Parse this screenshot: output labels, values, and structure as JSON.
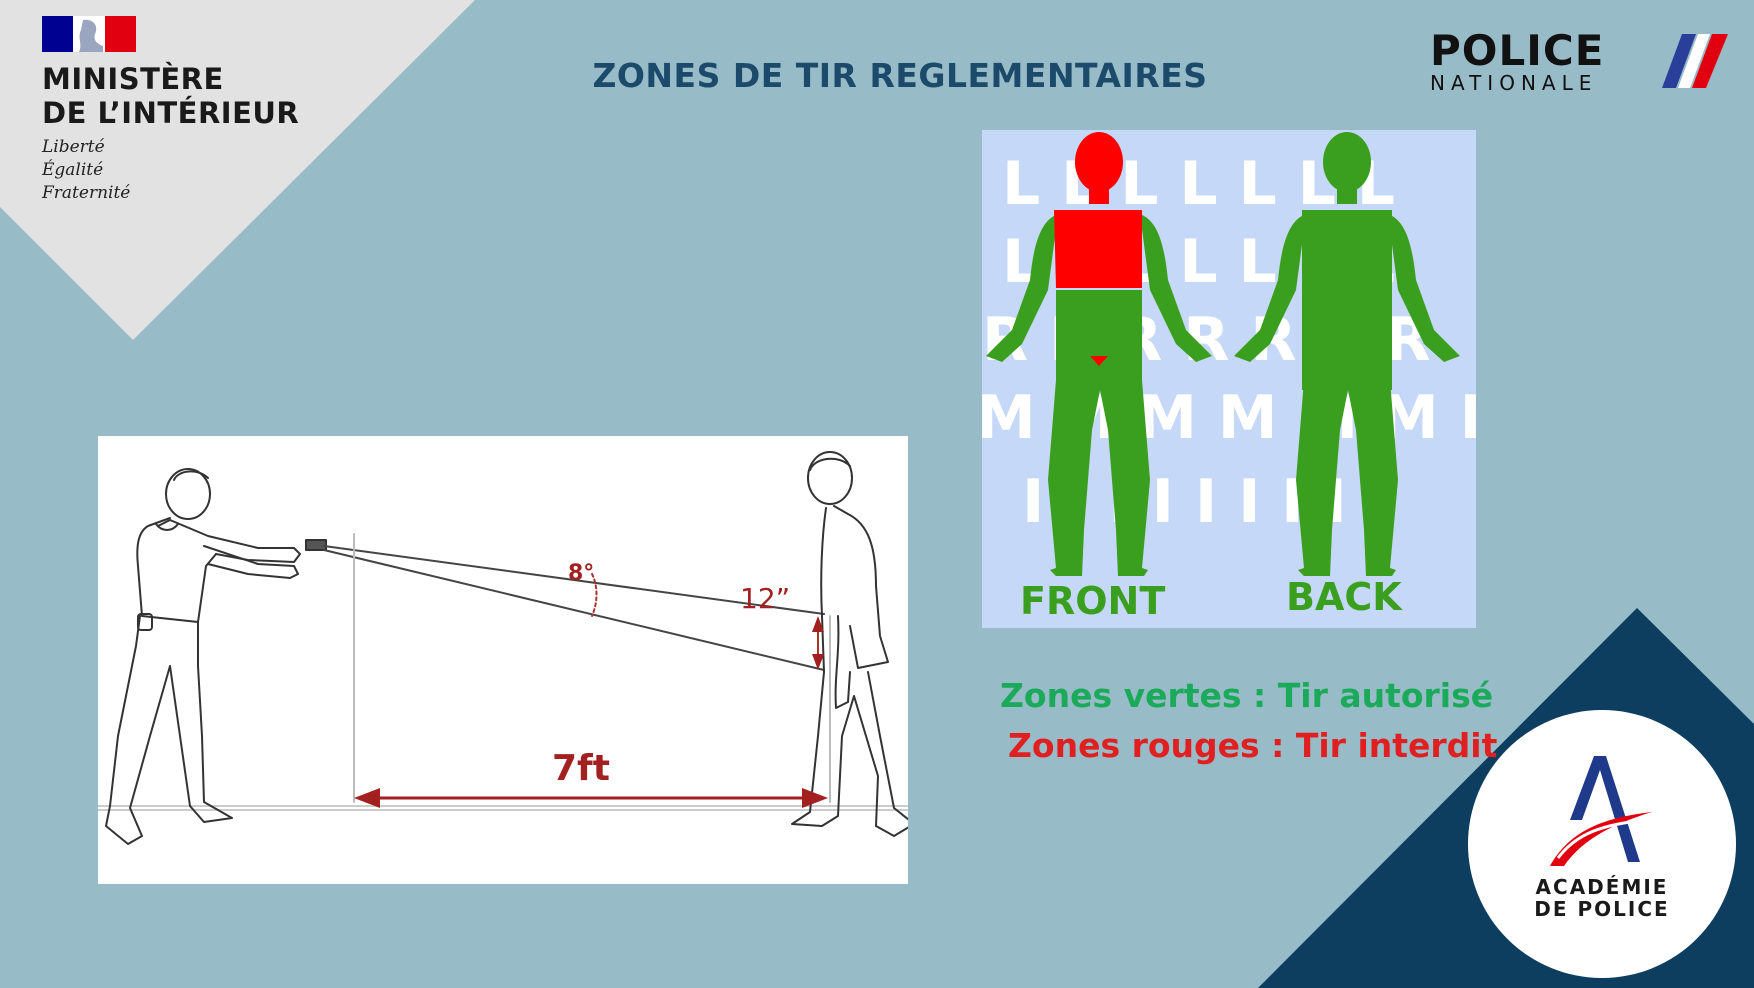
{
  "ministry": {
    "title_line1": "MINISTÈRE",
    "title_line2": "DE L’INTÉRIEUR",
    "motto_1": "Liberté",
    "motto_2": "Égalité",
    "motto_3": "Fraternité",
    "flag_colors": [
      "#000091",
      "#ffffff",
      "#e1000f"
    ]
  },
  "slide": {
    "title": "ZONES DE TIR REGLEMENTAIRES"
  },
  "police_logo": {
    "word1": "POLICE",
    "word2": "NATIONALE"
  },
  "range_diagram": {
    "angle_label": "8°",
    "height_label": "12”",
    "distance_label": "7ft"
  },
  "zone_diagram": {
    "front_label": "FRONT",
    "back_label": "BACK",
    "allowed_color": "#3a9e1e",
    "forbidden_color": "#ff0000"
  },
  "legend": {
    "green_text": "Zones vertes : Tir autorisé",
    "red_text": "Zones rouges : Tir interdit",
    "green_color": "#1aaa5a",
    "red_color": "#e02020"
  },
  "academy": {
    "line1": "ACADÉMIE",
    "line2": "DE POLICE"
  },
  "colors": {
    "background": "#98bbc8",
    "navy": "#0d3e5f",
    "title": "#1b4a6b"
  }
}
